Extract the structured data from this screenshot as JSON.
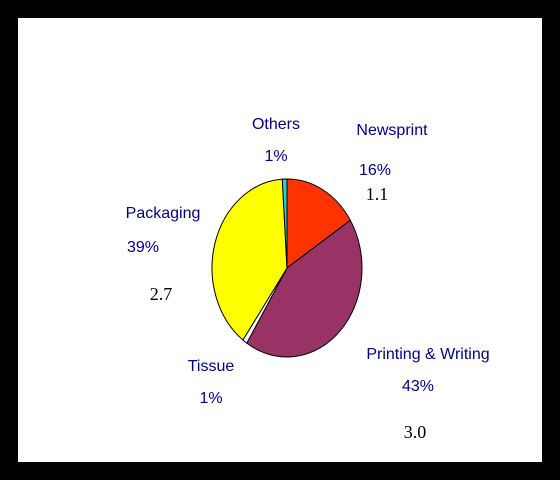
{
  "chart_data": {
    "type": "pie",
    "title": "",
    "slices": [
      {
        "name": "Newsprint",
        "percent": "16%",
        "share": 16,
        "value": "1.1",
        "color": "#ff3300"
      },
      {
        "name": "Printing & Writing",
        "percent": "43%",
        "share": 43,
        "value": "3.0",
        "color": "#993366"
      },
      {
        "name": "Tissue",
        "percent": "1%",
        "share": 1,
        "value": "",
        "color": "#ffffff"
      },
      {
        "name": "Packaging",
        "percent": "39%",
        "share": 39,
        "value": "2.7",
        "color": "#ffff00"
      },
      {
        "name": "Others",
        "percent": "1%",
        "share": 1,
        "value": "",
        "color": "#33cccc"
      }
    ],
    "label_color": "#000080",
    "value_color": "#000000"
  }
}
